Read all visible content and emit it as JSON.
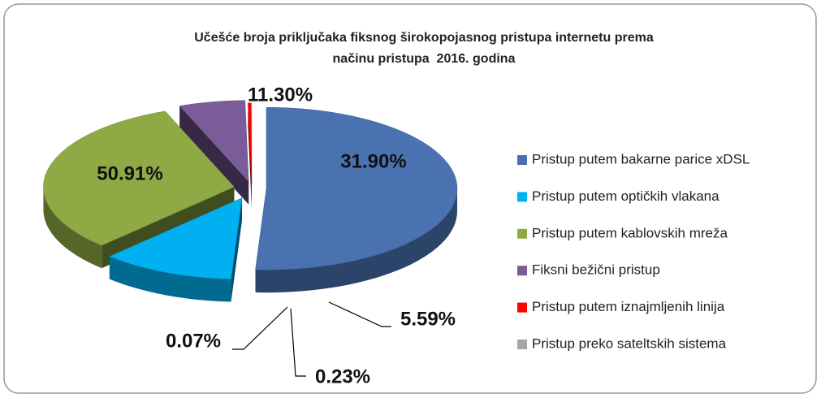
{
  "chart_data": {
    "type": "pie",
    "title": [
      "Učešće broja priključaka fiksnog širokopojasnog pristupa internetu prema",
      "načinu pristupa  2016. godina"
    ],
    "categories": [
      "Pristup putem bakarne parice xDSL",
      "Pristup putem optičkih vlakana",
      "Pristup putem kablovskih mreža",
      "Fiksni bežični pristup",
      "Pristup putem iznajmljenih linija",
      "Pristup preko sateltskih sistema"
    ],
    "values": [
      50.91,
      11.3,
      31.9,
      5.59,
      0.23,
      0.07
    ],
    "value_labels": [
      "50.91%",
      "11.30%",
      "31.90%",
      "5.59%",
      "0.23%",
      "0.07%"
    ],
    "colors": [
      "#4a72b0",
      "#00b0f0",
      "#8faa45",
      "#7a5c99",
      "#ff0000",
      "#a6a6a6"
    ],
    "legend": "right"
  }
}
